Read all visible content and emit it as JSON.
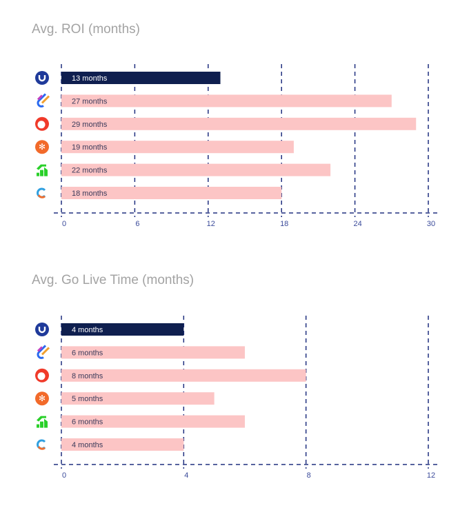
{
  "colors": {
    "highlight": "#0f1f4f",
    "other": "#fcc5c5",
    "grid": "#1f2f7f"
  },
  "icons": [
    "company-u-icon",
    "company-rings-icon",
    "company-red-circle-icon",
    "company-orange-snowflake-icon",
    "company-green-arrows-icon",
    "company-c-icon"
  ],
  "chart_data": [
    {
      "type": "bar",
      "orientation": "horizontal",
      "title": "Avg. ROI (months)",
      "xlim": [
        0,
        30
      ],
      "ticks": [
        "0",
        "6",
        "12",
        "18",
        "24",
        "30"
      ],
      "tick_values": [
        0,
        6,
        12,
        18,
        24,
        30
      ],
      "values": [
        13,
        27,
        29,
        19,
        22,
        18
      ],
      "labels": [
        "13 months",
        "27 months",
        "29 months",
        "19 months",
        "22 months",
        "18 months"
      ]
    },
    {
      "type": "bar",
      "orientation": "horizontal",
      "title": "Avg. Go Live Time (months)",
      "xlim": [
        0,
        12
      ],
      "ticks": [
        "0",
        "4",
        "8",
        "12"
      ],
      "tick_values": [
        0,
        4,
        8,
        12
      ],
      "values": [
        4,
        6,
        8,
        5,
        6,
        4
      ],
      "labels": [
        "4 months",
        "6 months",
        "8 months",
        "5 months",
        "6 months",
        "4 months"
      ]
    }
  ]
}
